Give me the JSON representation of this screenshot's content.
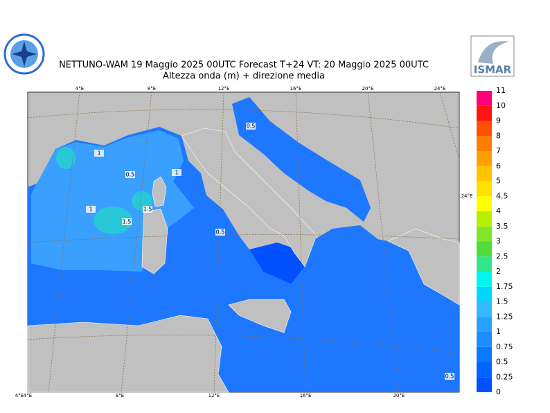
{
  "header": {
    "title_line1": "NETTUNO-WAM  19   Maggio  2025 00UTC Forecast T+24 VT: 20   Maggio  2025 00UTC",
    "title_line2": "Altezza onda (m) + direzione media",
    "right_logo_text": "ISMAR"
  },
  "map": {
    "lon_labels_top": [
      "4°E",
      "8°E",
      "12°E",
      "16°E",
      "20°E",
      "24°E"
    ],
    "lon_labels_bottom": [
      "4°E",
      "4°E",
      "8°E",
      "12°E",
      "16°E",
      "20°E"
    ],
    "lat_label_right": "24°E",
    "contour_labels": [
      "0.5",
      "1",
      "0.5",
      "1",
      "1",
      "1.5",
      "1.5",
      "0.5",
      "0.5"
    ]
  },
  "legend": {
    "levels": [
      "0",
      "0.25",
      "0.5",
      "0.75",
      "1",
      "1.25",
      "1.5",
      "1.75",
      "2",
      "2.5",
      "3",
      "3.5",
      "4",
      "4.5",
      "5",
      "6",
      "7",
      "8",
      "9",
      "10",
      "11"
    ],
    "colors": [
      "#0050ff",
      "#0064ff",
      "#0a78ff",
      "#1e8cff",
      "#28a0ff",
      "#32b9ff",
      "#00d7ff",
      "#00f5f0",
      "#32e68c",
      "#50dc3c",
      "#82e628",
      "#b4f000",
      "#ffff00",
      "#ffe100",
      "#ffc300",
      "#ffa000",
      "#ff7d00",
      "#ff5000",
      "#ff1414",
      "#ff0078",
      "#ff28c8"
    ]
  }
}
